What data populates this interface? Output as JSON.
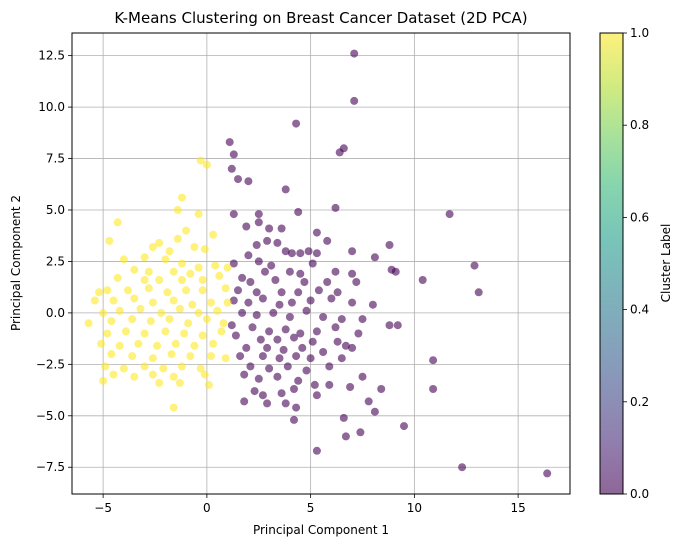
{
  "chart_data": {
    "type": "scatter",
    "title": "K-Means Clustering on Breast Cancer Dataset (2D PCA)",
    "xlabel": "Principal Component 1",
    "ylabel": "Principal Component 2",
    "xlim": [
      -6.5,
      17.5
    ],
    "ylim": [
      -8.8,
      13.6
    ],
    "xticks": [
      -5,
      0,
      5,
      10,
      15
    ],
    "yticks": [
      -7.5,
      -5.0,
      -2.5,
      0.0,
      2.5,
      5.0,
      7.5,
      10.0,
      12.5
    ],
    "grid": true,
    "colorbar": {
      "label": "Cluster Label",
      "range": [
        0.0,
        1.0
      ],
      "ticks": [
        0.0,
        0.2,
        0.4,
        0.6,
        0.8,
        1.0
      ],
      "colors": [
        "#440154",
        "#482878",
        "#3e4989",
        "#31688e",
        "#26828e",
        "#1f9e89",
        "#35b779",
        "#6ece58",
        "#b5de2b",
        "#fde725"
      ]
    },
    "clusters": [
      {
        "label": 0,
        "color": "#440154",
        "points": [
          [
            7.1,
            12.6
          ],
          [
            7.1,
            10.3
          ],
          [
            4.3,
            9.2
          ],
          [
            1.1,
            8.3
          ],
          [
            6.6,
            8.0
          ],
          [
            6.4,
            7.8
          ],
          [
            1.3,
            7.7
          ],
          [
            1.2,
            7.0
          ],
          [
            1.5,
            6.5
          ],
          [
            2.0,
            6.4
          ],
          [
            3.8,
            6.0
          ],
          [
            6.2,
            5.1
          ],
          [
            11.7,
            4.8
          ],
          [
            1.3,
            4.8
          ],
          [
            2.5,
            4.8
          ],
          [
            4.4,
            4.9
          ],
          [
            5.3,
            3.9
          ],
          [
            2.5,
            4.4
          ],
          [
            1.9,
            4.2
          ],
          [
            3.0,
            4.1
          ],
          [
            3.6,
            4.1
          ],
          [
            2.9,
            3.5
          ],
          [
            3.4,
            3.4
          ],
          [
            5.8,
            3.5
          ],
          [
            8.8,
            3.3
          ],
          [
            2.4,
            3.3
          ],
          [
            2.0,
            2.8
          ],
          [
            3.8,
            3.0
          ],
          [
            4.1,
            2.9
          ],
          [
            4.5,
            2.9
          ],
          [
            4.9,
            3.0
          ],
          [
            5.3,
            2.9
          ],
          [
            7.0,
            3.0
          ],
          [
            8.1,
            2.7
          ],
          [
            8.9,
            2.1
          ],
          [
            9.1,
            2.0
          ],
          [
            10.4,
            1.6
          ],
          [
            12.9,
            2.3
          ],
          [
            13.1,
            1.0
          ],
          [
            1.3,
            2.4
          ],
          [
            2.5,
            2.5
          ],
          [
            3.1,
            2.3
          ],
          [
            2.8,
            2.0
          ],
          [
            4.0,
            2.0
          ],
          [
            4.5,
            1.9
          ],
          [
            5.1,
            2.4
          ],
          [
            6.2,
            2.0
          ],
          [
            7.0,
            1.9
          ],
          [
            1.7,
            1.7
          ],
          [
            2.1,
            1.5
          ],
          [
            3.3,
            1.6
          ],
          [
            4.7,
            1.5
          ],
          [
            5.8,
            1.5
          ],
          [
            7.2,
            1.5
          ],
          [
            1.5,
            1.1
          ],
          [
            2.4,
            1.0
          ],
          [
            3.6,
            1.0
          ],
          [
            4.4,
            1.0
          ],
          [
            5.4,
            1.1
          ],
          [
            6.3,
            1.0
          ],
          [
            1.3,
            0.6
          ],
          [
            2.0,
            0.5
          ],
          [
            2.7,
            0.7
          ],
          [
            3.5,
            0.4
          ],
          [
            4.1,
            0.5
          ],
          [
            5.0,
            0.6
          ],
          [
            6.0,
            0.7
          ],
          [
            7.0,
            0.5
          ],
          [
            8.0,
            0.4
          ],
          [
            1.7,
            0.0
          ],
          [
            2.4,
            -0.1
          ],
          [
            3.2,
            0.0
          ],
          [
            4.0,
            -0.2
          ],
          [
            4.8,
            0.1
          ],
          [
            5.6,
            -0.2
          ],
          [
            6.5,
            -0.3
          ],
          [
            7.5,
            -0.3
          ],
          [
            8.8,
            -0.6
          ],
          [
            9.2,
            -0.6
          ],
          [
            1.2,
            -0.6
          ],
          [
            2.2,
            -0.7
          ],
          [
            3.0,
            -0.9
          ],
          [
            3.8,
            -0.8
          ],
          [
            4.5,
            -1.0
          ],
          [
            5.3,
            -0.9
          ],
          [
            6.2,
            -0.7
          ],
          [
            7.3,
            -1.0
          ],
          [
            1.4,
            -1.1
          ],
          [
            2.6,
            -1.3
          ],
          [
            3.4,
            -1.3
          ],
          [
            4.2,
            -1.2
          ],
          [
            5.1,
            -1.4
          ],
          [
            6.3,
            -1.4
          ],
          [
            6.7,
            -1.6
          ],
          [
            1.9,
            -1.7
          ],
          [
            2.9,
            -1.7
          ],
          [
            3.7,
            -1.8
          ],
          [
            4.6,
            -1.7
          ],
          [
            5.6,
            -1.9
          ],
          [
            7.0,
            -1.7
          ],
          [
            1.6,
            -2.1
          ],
          [
            2.7,
            -2.1
          ],
          [
            3.5,
            -2.2
          ],
          [
            4.3,
            -2.1
          ],
          [
            5.0,
            -2.2
          ],
          [
            6.5,
            -2.2
          ],
          [
            10.9,
            -2.3
          ],
          [
            2.1,
            -2.6
          ],
          [
            3.0,
            -2.7
          ],
          [
            3.9,
            -2.6
          ],
          [
            4.8,
            -2.8
          ],
          [
            5.9,
            -2.6
          ],
          [
            1.8,
            -3.0
          ],
          [
            2.5,
            -3.2
          ],
          [
            3.4,
            -3.1
          ],
          [
            4.4,
            -3.3
          ],
          [
            5.2,
            -3.5
          ],
          [
            7.5,
            -3.1
          ],
          [
            2.3,
            -3.8
          ],
          [
            2.7,
            -4.0
          ],
          [
            3.6,
            -3.9
          ],
          [
            4.2,
            -3.7
          ],
          [
            5.9,
            -3.5
          ],
          [
            6.9,
            -3.6
          ],
          [
            8.4,
            -3.7
          ],
          [
            10.9,
            -3.7
          ],
          [
            1.8,
            -4.3
          ],
          [
            2.9,
            -4.4
          ],
          [
            3.8,
            -4.4
          ],
          [
            5.3,
            -4.0
          ],
          [
            7.8,
            -4.3
          ],
          [
            4.3,
            -4.6
          ],
          [
            8.1,
            -4.8
          ],
          [
            4.2,
            -5.2
          ],
          [
            6.6,
            -5.1
          ],
          [
            9.5,
            -5.5
          ],
          [
            6.7,
            -6.0
          ],
          [
            7.4,
            -5.8
          ],
          [
            5.3,
            -6.7
          ],
          [
            12.3,
            -7.5
          ],
          [
            16.4,
            -7.8
          ]
        ]
      },
      {
        "label": 1,
        "color": "#fde725",
        "points": [
          [
            -0.3,
            7.4
          ],
          [
            0.0,
            7.2
          ],
          [
            -1.2,
            5.6
          ],
          [
            -1.4,
            5.0
          ],
          [
            -0.4,
            4.8
          ],
          [
            -4.3,
            4.4
          ],
          [
            -1.0,
            4.0
          ],
          [
            0.3,
            3.8
          ],
          [
            -1.4,
            3.6
          ],
          [
            -2.3,
            3.4
          ],
          [
            -0.6,
            3.2
          ],
          [
            -4.7,
            3.5
          ],
          [
            -2.6,
            3.2
          ],
          [
            -1.8,
            3.0
          ],
          [
            -0.1,
            3.1
          ],
          [
            -3.0,
            2.7
          ],
          [
            -2.0,
            2.6
          ],
          [
            -1.2,
            2.4
          ],
          [
            -4.0,
            2.6
          ],
          [
            -0.4,
            2.2
          ],
          [
            0.4,
            2.3
          ],
          [
            -3.5,
            2.1
          ],
          [
            -2.8,
            2.0
          ],
          [
            -1.6,
            2.0
          ],
          [
            -0.8,
            1.9
          ],
          [
            1.0,
            2.2
          ],
          [
            -5.2,
            1.0
          ],
          [
            -4.3,
            1.7
          ],
          [
            -3.0,
            1.6
          ],
          [
            -2.3,
            1.6
          ],
          [
            -1.2,
            1.6
          ],
          [
            -0.2,
            1.6
          ],
          [
            0.6,
            1.8
          ],
          [
            -5.4,
            0.6
          ],
          [
            -4.8,
            1.1
          ],
          [
            -3.8,
            1.1
          ],
          [
            -2.8,
            1.2
          ],
          [
            -1.9,
            1.0
          ],
          [
            -1.0,
            1.1
          ],
          [
            -0.2,
            1.1
          ],
          [
            0.9,
            1.2
          ],
          [
            -4.5,
            0.6
          ],
          [
            -3.5,
            0.7
          ],
          [
            -2.6,
            0.5
          ],
          [
            -1.6,
            0.6
          ],
          [
            -0.7,
            0.4
          ],
          [
            0.2,
            0.5
          ],
          [
            1.0,
            0.5
          ],
          [
            -5.0,
            0.0
          ],
          [
            -4.2,
            0.1
          ],
          [
            -3.2,
            0.2
          ],
          [
            -2.2,
            0.0
          ],
          [
            -1.3,
            0.2
          ],
          [
            -0.4,
            0.0
          ],
          [
            0.5,
            0.1
          ],
          [
            -5.7,
            -0.5
          ],
          [
            -4.6,
            -0.4
          ],
          [
            -3.6,
            -0.3
          ],
          [
            -2.7,
            -0.4
          ],
          [
            -1.8,
            -0.3
          ],
          [
            -0.9,
            -0.5
          ],
          [
            0.0,
            -0.3
          ],
          [
            0.8,
            -0.5
          ],
          [
            -4.8,
            -1.0
          ],
          [
            -3.9,
            -0.9
          ],
          [
            -3.0,
            -1.0
          ],
          [
            -2.0,
            -0.9
          ],
          [
            -1.1,
            -1.0
          ],
          [
            -0.2,
            -1.1
          ],
          [
            0.7,
            -0.9
          ],
          [
            -5.1,
            -1.5
          ],
          [
            -4.2,
            -1.6
          ],
          [
            -3.3,
            -1.5
          ],
          [
            -2.4,
            -1.6
          ],
          [
            -1.5,
            -1.5
          ],
          [
            -0.6,
            -1.6
          ],
          [
            0.3,
            -1.5
          ],
          [
            -4.6,
            -2.0
          ],
          [
            -3.6,
            -2.1
          ],
          [
            -2.6,
            -2.2
          ],
          [
            -1.7,
            -2.0
          ],
          [
            -0.8,
            -2.1
          ],
          [
            0.2,
            -2.1
          ],
          [
            0.9,
            -2.2
          ],
          [
            -4.9,
            -2.6
          ],
          [
            -4.0,
            -2.7
          ],
          [
            -3.0,
            -2.6
          ],
          [
            -2.1,
            -2.7
          ],
          [
            -1.2,
            -2.6
          ],
          [
            -0.3,
            -2.7
          ],
          [
            -4.5,
            -3.0
          ],
          [
            -3.5,
            -3.1
          ],
          [
            -2.6,
            -3.0
          ],
          [
            -1.6,
            -3.1
          ],
          [
            -0.1,
            -3.0
          ],
          [
            -5.0,
            -3.3
          ],
          [
            -2.3,
            -3.4
          ],
          [
            -1.3,
            -3.4
          ],
          [
            0.1,
            -3.5
          ],
          [
            -1.6,
            -4.6
          ]
        ]
      }
    ]
  }
}
